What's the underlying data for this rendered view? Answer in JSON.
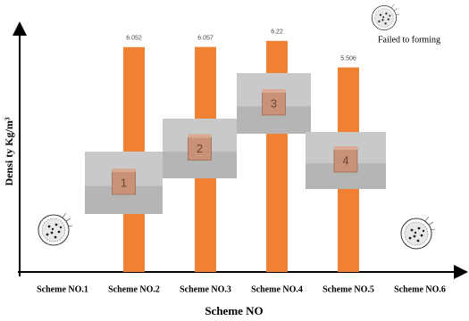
{
  "chart_data": {
    "type": "bar",
    "y_label": "Densi ty  Kg/m³",
    "x_label": "Scheme NO",
    "categories": [
      "Scheme NO.1",
      "Scheme NO.2",
      "Scheme NO.3",
      "Scheme NO.4",
      "Scheme NO.5",
      "Scheme NO.6"
    ],
    "values": [
      null,
      6.052,
      6.057,
      6.22,
      5.506,
      null
    ],
    "color": "#f08133",
    "ylim": [
      0,
      6.6
    ],
    "sample_labels": [
      "1",
      "2",
      "3",
      "4"
    ],
    "annotation": "Failed to forming"
  }
}
